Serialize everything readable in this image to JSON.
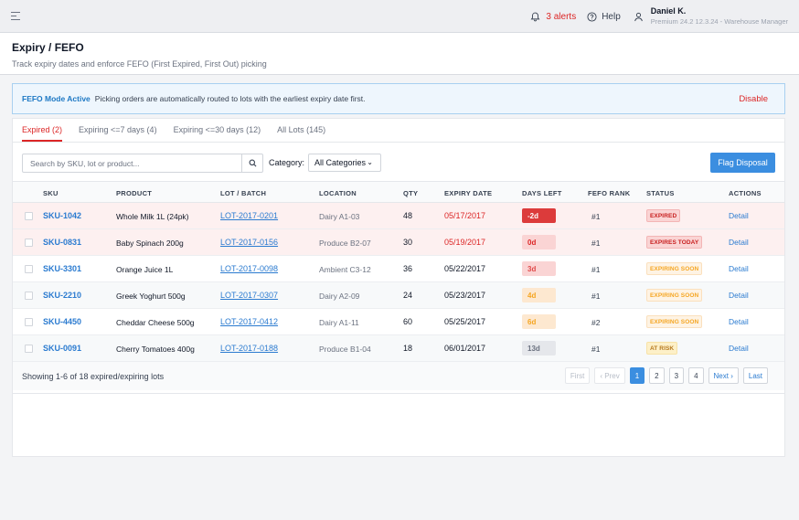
{
  "topbar": {
    "alerts_label": "3 alerts",
    "help_label": "Help",
    "user_name": "Daniel K.",
    "user_meta": "Premium 24.2 12.3.24 - Warehouse Manager",
    "icons": [
      "menu-icon",
      "bell-icon",
      "help-circle-icon",
      "user-icon"
    ]
  },
  "header": {
    "title": "Expiry / FEFO",
    "subtitle": "Track expiry dates and enforce FEFO (First Expired, First Out) picking"
  },
  "banner": {
    "title": "FEFO Mode Active",
    "text": "Picking orders are automatically routed to lots with the earliest expiry date first.",
    "action": "Disable"
  },
  "tabs": [
    {
      "label": "Expired (2)",
      "active": true
    },
    {
      "label": "Expiring <=7 days (4)",
      "active": false
    },
    {
      "label": "Expiring <=30 days (12)",
      "active": false
    },
    {
      "label": "All Lots (145)",
      "active": false
    }
  ],
  "toolbar": {
    "search_placeholder": "Search by SKU, lot or product...",
    "category_label": "Category:",
    "category_value": "All Categories",
    "flag_button": "Flag Disposal"
  },
  "table": {
    "columns": [
      "SKU",
      "PRODUCT",
      "LOT / BATCH",
      "LOCATION",
      "QTY",
      "EXPIRY DATE",
      "DAYS LEFT",
      "FEFO RANK",
      "STATUS",
      "ACTIONS"
    ],
    "rows": [
      {
        "sku": "SKU-1042",
        "product": "Whole Milk 1L (24pk)",
        "lot": "LOT-2017-0201",
        "location": "Dairy A1-03",
        "qty": "48",
        "expiry": "05/17/2017",
        "days_left": "-2d",
        "rank": "#1",
        "status": "EXPIRED",
        "action": "Detail"
      },
      {
        "sku": "SKU-0831",
        "product": "Baby Spinach 200g",
        "lot": "LOT-2017-0156",
        "location": "Produce B2-07",
        "qty": "30",
        "expiry": "05/19/2017",
        "days_left": "0d",
        "rank": "#1",
        "status": "EXPIRES TODAY",
        "action": "Detail"
      },
      {
        "sku": "SKU-3301",
        "product": "Orange Juice 1L",
        "lot": "LOT-2017-0098",
        "location": "Ambient C3-12",
        "qty": "36",
        "expiry": "05/22/2017",
        "days_left": "3d",
        "rank": "#1",
        "status": "EXPIRING SOON",
        "action": "Detail"
      },
      {
        "sku": "SKU-2210",
        "product": "Greek Yoghurt 500g",
        "lot": "LOT-2017-0307",
        "location": "Dairy A2-09",
        "qty": "24",
        "expiry": "05/23/2017",
        "days_left": "4d",
        "rank": "#1",
        "status": "EXPIRING SOON",
        "action": "Detail"
      },
      {
        "sku": "SKU-4450",
        "product": "Cheddar Cheese 500g",
        "lot": "LOT-2017-0412",
        "location": "Dairy A1-11",
        "qty": "60",
        "expiry": "05/25/2017",
        "days_left": "6d",
        "rank": "#2",
        "status": "EXPIRING SOON",
        "action": "Detail"
      },
      {
        "sku": "SKU-0091",
        "product": "Cherry Tomatoes 400g",
        "lot": "LOT-2017-0188",
        "location": "Produce B1-04",
        "qty": "18",
        "expiry": "06/01/2017",
        "days_left": "13d",
        "rank": "#1",
        "status": "AT RISK",
        "action": "Detail"
      }
    ]
  },
  "footer": {
    "showing": "Showing 1-6 of 18 expired/expiring lots",
    "pager": {
      "first": "First",
      "prev": "‹ Prev",
      "pages": [
        "1",
        "2",
        "3",
        "4"
      ],
      "current": "1",
      "next": "Next ›",
      "last": "Last"
    }
  },
  "colors": {
    "accent": "#3b8ee0",
    "danger": "#dc2626",
    "expired_badge_bg": "#dc3b3b",
    "today_badge_bg": "#fad4d4",
    "soon_badge_bg": "#fde8d0",
    "risk_badge_bg": "#fdf0c8",
    "neutral_badge_bg": "#e5e7eb"
  }
}
